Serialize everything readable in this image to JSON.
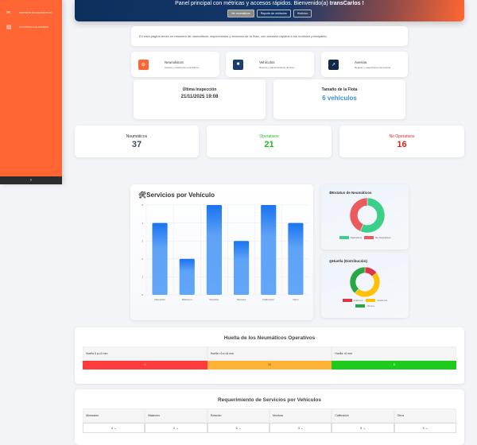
{
  "sidebar": {
    "items": [
      {
        "label": "REPORTE DE NEUMÁTICOS",
        "icon": "tools-icon"
      },
      {
        "label": "HISTÓRICO DE AVERÍAS",
        "icon": "calendar-icon"
      }
    ],
    "collapse_icon": "chevron-left-icon"
  },
  "header": {
    "subtitle": "Panel principal con métricas y accesos rápidos. Bienvenido(a) ",
    "user": "transCarlos !",
    "buttons": [
      "Ver neumáticos",
      "Reporte de vehículos",
      "Histórico"
    ]
  },
  "intro": "En esta página tenes un resumen de neumáticos, inspecciones y servicios de tu flota, con accesos rápidos a los módulos principales.",
  "modules": [
    {
      "title": "Neumáticos",
      "desc": "Gestión y estado de neumáticos",
      "color": "#ff6633",
      "icon": "tire-icon"
    },
    {
      "title": "Vehículos",
      "desc": "Reporte y administración de flota",
      "color": "#1d3d6e",
      "icon": "truck-icon"
    },
    {
      "title": "Averías",
      "desc": "Registro y seguimiento de averías",
      "color": "#12294a",
      "icon": "wrench-icon"
    }
  ],
  "info": {
    "last_inspection_label": "Última Inspección",
    "last_inspection": "21/11/2025 19:08",
    "fleet_label": "Tamaño de la Flota",
    "fleet": "6 vehículos"
  },
  "stats": [
    {
      "label": "Neumáticos",
      "value": "37",
      "color": "#3b4a63"
    },
    {
      "label": "Operativos",
      "value": "21",
      "color": "#22bb22"
    },
    {
      "label": "No Operativos",
      "value": "16",
      "color": "#dd2222"
    }
  ],
  "chart_data": [
    {
      "type": "bar",
      "title": "🛠Servicios por Vehículo",
      "categories": [
        "Alineación",
        "Balanceo",
        "Rotación",
        "Montura",
        "Calibración",
        "Otros"
      ],
      "values": [
        4,
        2,
        5,
        3,
        5,
        4
      ],
      "ylim": [
        0,
        5
      ],
      "yticks": [
        0,
        1,
        2,
        3,
        4,
        5
      ],
      "grid": true,
      "color": "#5fa3f7"
    },
    {
      "type": "pie",
      "title": "⚙Estatus de Neumáticos",
      "labels": [
        "Operativos",
        "No Operativos"
      ],
      "values": [
        21,
        16
      ],
      "colors": [
        "#3ccf8a",
        "#ea5a5e"
      ],
      "legend": "bottom"
    },
    {
      "type": "pie",
      "title": "◎Huella (Distribución)",
      "labels": [
        "0-≤3 mm",
        ">3-≤6 mm",
        ">6 mm"
      ],
      "values": [
        3,
        10,
        8
      ],
      "colors": [
        "#dc3545",
        "#ffc107",
        "#28a745"
      ],
      "legend": "bottom"
    }
  ],
  "huella": {
    "title": "Huella de los Neumáticos Operativos",
    "headers": [
      "Huella 0 a ≤3 mm",
      "Huella >3 a ≤6 mm",
      "Huella >6 mm"
    ],
    "values": [
      "3",
      "10",
      "8"
    ],
    "colors": [
      "#ff3b3b",
      "#ffb236",
      "#1ccb1c"
    ]
  },
  "servicios": {
    "title": "Requerimiento de Servicios por Vehiculos",
    "headers": [
      "Alineación",
      "Balanceo",
      "Rotación",
      "Montura",
      "Calibración",
      "Otros"
    ],
    "values": [
      "4",
      "2",
      "5",
      "3",
      "5",
      "4"
    ]
  }
}
